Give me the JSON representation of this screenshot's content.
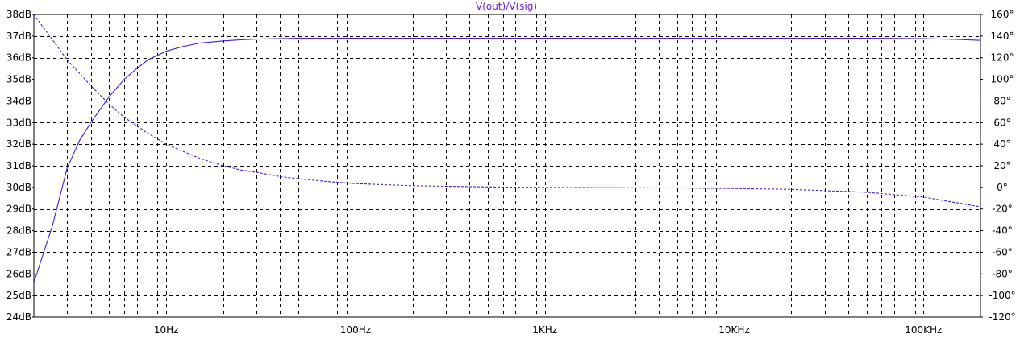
{
  "chart_data": {
    "type": "line",
    "title": "V(out)/V(sig)",
    "x_scale": "log",
    "xlim": [
      2,
      200000
    ],
    "x_tick_labels": [
      {
        "value": 10,
        "label": "10Hz"
      },
      {
        "value": 100,
        "label": "100Hz"
      },
      {
        "value": 1000,
        "label": "1KHz"
      },
      {
        "value": 10000,
        "label": "10KHz"
      },
      {
        "value": 100000,
        "label": "100KHz"
      }
    ],
    "y_left": {
      "unit": "dB",
      "ylim": [
        24,
        38
      ],
      "tick_labels": [
        "24dB",
        "25dB",
        "26dB",
        "27dB",
        "28dB",
        "29dB",
        "30dB",
        "31dB",
        "32dB",
        "33dB",
        "34dB",
        "35dB",
        "36dB",
        "37dB",
        "38dB"
      ]
    },
    "y_right": {
      "unit": "°",
      "ylim": [
        -120,
        160
      ],
      "tick_labels": [
        "-120°",
        "-100°",
        "-80°",
        "-60°",
        "-40°",
        "-20°",
        "0°",
        "20°",
        "40°",
        "60°",
        "80°",
        "100°",
        "120°",
        "140°",
        "160°"
      ]
    },
    "grid": true,
    "series": [
      {
        "axis": "left",
        "style": "solid",
        "x": [
          2,
          2.5,
          3,
          3.5,
          4,
          5,
          6,
          7,
          8,
          10,
          12,
          15,
          20,
          25,
          30,
          40,
          50,
          70,
          100,
          1000,
          10000,
          50000,
          100000,
          150000,
          200000
        ],
        "y": [
          25.6,
          28.2,
          30.9,
          32.2,
          33.0,
          34.2,
          35.0,
          35.5,
          35.9,
          36.3,
          36.5,
          36.68,
          36.78,
          36.83,
          36.86,
          36.88,
          36.9,
          36.9,
          36.9,
          36.9,
          36.9,
          36.9,
          36.88,
          36.85,
          36.8
        ]
      },
      {
        "axis": "right",
        "style": "dashed",
        "x": [
          2,
          3,
          4,
          5,
          6,
          7,
          8,
          10,
          12,
          15,
          20,
          25,
          30,
          40,
          50,
          70,
          100,
          200,
          500,
          1000,
          5000,
          10000,
          20000,
          50000,
          100000,
          200000
        ],
        "y": [
          160,
          118,
          94,
          77,
          65,
          57,
          50,
          40,
          34,
          27,
          20,
          16,
          14,
          10,
          8,
          5.5,
          3.5,
          1.5,
          0.4,
          0,
          -0.5,
          -1,
          -1.8,
          -4.5,
          -9,
          -18
        ]
      }
    ]
  },
  "colors": {
    "trace": "#3a1fe0",
    "title": "#6b1fd6",
    "grid": "#000000",
    "background": "#ffffff"
  }
}
